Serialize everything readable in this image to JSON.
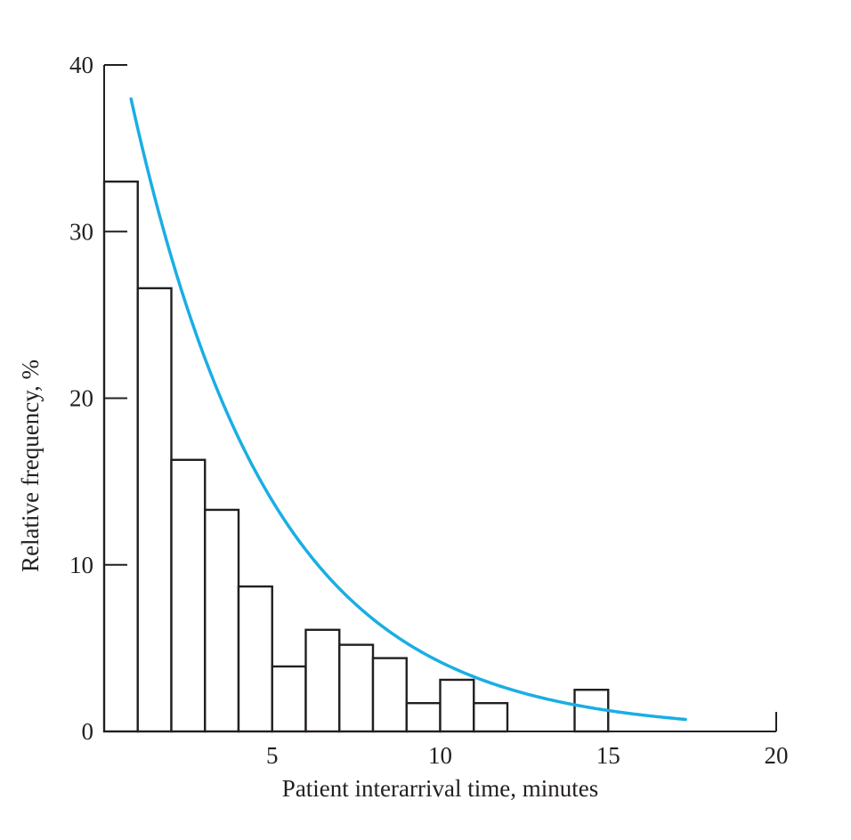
{
  "chart_data": {
    "type": "bar",
    "title": "",
    "xlabel": "Patient interarrival time, minutes",
    "ylabel": "Relative frequency, %",
    "xlim": [
      0,
      20
    ],
    "ylim": [
      0,
      40
    ],
    "xticks": [
      5,
      10,
      15,
      20
    ],
    "yticks": [
      0,
      10,
      20,
      30,
      40
    ],
    "bin_width": 1,
    "bins": [
      {
        "start": 0,
        "end": 1,
        "value": 33.0
      },
      {
        "start": 1,
        "end": 2,
        "value": 26.6
      },
      {
        "start": 2,
        "end": 3,
        "value": 16.3
      },
      {
        "start": 3,
        "end": 4,
        "value": 13.3
      },
      {
        "start": 4,
        "end": 5,
        "value": 8.7
      },
      {
        "start": 5,
        "end": 6,
        "value": 3.9
      },
      {
        "start": 6,
        "end": 7,
        "value": 6.1
      },
      {
        "start": 7,
        "end": 8,
        "value": 5.2
      },
      {
        "start": 8,
        "end": 9,
        "value": 4.4
      },
      {
        "start": 9,
        "end": 10,
        "value": 1.7
      },
      {
        "start": 10,
        "end": 11,
        "value": 3.1
      },
      {
        "start": 11,
        "end": 12,
        "value": 1.7
      },
      {
        "start": 12,
        "end": 13,
        "value": 0
      },
      {
        "start": 13,
        "end": 14,
        "value": 0
      },
      {
        "start": 14,
        "end": 15,
        "value": 2.5
      }
    ],
    "fitted_curve": {
      "type": "exponential",
      "x_start": 0.8,
      "x_end": 17.3,
      "amplitude": 46.0,
      "rate": 0.24,
      "color": "#1aaee3"
    }
  }
}
